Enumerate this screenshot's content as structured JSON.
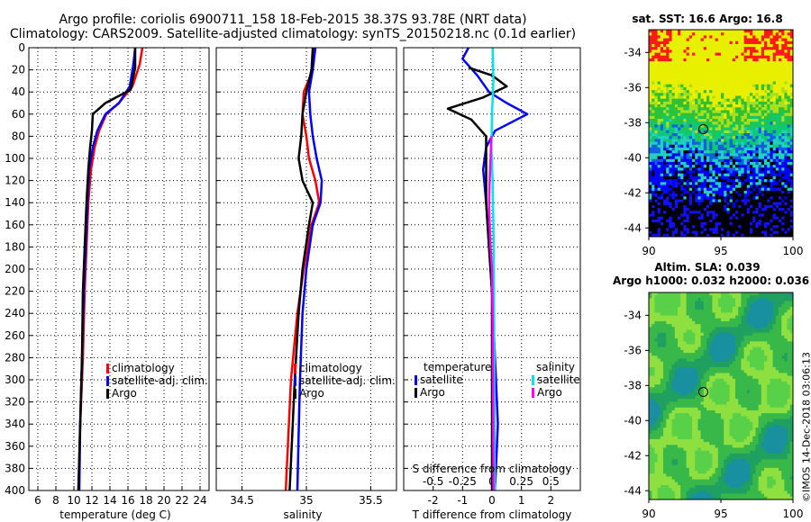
{
  "header": {
    "title_line1": "Argo profile: coriolis 6900711_158 18-Feb-2015 38.37S 93.78E (NRT data)",
    "title_line2": "Climatology: CARS2009. Satellite-adjusted climatology: synTS_20150218.nc (0.1d earlier)"
  },
  "credit": "©IMOS 14-Dec-2018 03:06:13",
  "colors": {
    "climatology": "#ff0000",
    "satellite": "#0000ff",
    "argo": "#000000",
    "sal_satellite": "#00e5ee",
    "sal_argo": "#ff00ff"
  },
  "chart_data": [
    {
      "id": "temperature",
      "type": "line",
      "xlabel": "temperature (deg C)",
      "ylabel": "",
      "xlim": [
        5,
        25
      ],
      "ylim": [
        400,
        0
      ],
      "xticks": [
        6,
        8,
        10,
        12,
        14,
        16,
        18,
        20,
        22,
        24
      ],
      "yticks": [
        0,
        20,
        40,
        60,
        80,
        100,
        120,
        140,
        160,
        180,
        200,
        220,
        240,
        260,
        280,
        300,
        320,
        340,
        360,
        380,
        400
      ],
      "grid": true,
      "legend": [
        "climatology",
        "satellite-adj. clim.",
        "Argo"
      ],
      "legend_position": "bottom-right",
      "series": [
        {
          "name": "climatology",
          "color": "#ff0000",
          "x": [
            17.6,
            17.3,
            16.5,
            15.0,
            13.6,
            12.8,
            12.3,
            11.9,
            11.6,
            11.4,
            11.2,
            11.0,
            10.7,
            10.5
          ],
          "y": [
            0,
            15,
            35,
            50,
            60,
            75,
            90,
            110,
            140,
            180,
            220,
            280,
            340,
            400
          ]
        },
        {
          "name": "satellite-adj. clim.",
          "color": "#0000ff",
          "x": [
            16.8,
            16.6,
            16.2,
            15.0,
            13.5,
            12.6,
            12.1,
            11.7,
            11.5,
            11.3,
            11.1,
            10.9,
            10.7,
            10.6
          ],
          "y": [
            0,
            15,
            35,
            50,
            60,
            75,
            90,
            110,
            140,
            180,
            220,
            280,
            340,
            400
          ]
        },
        {
          "name": "Argo",
          "color": "#000000",
          "x": [
            16.8,
            16.8,
            16.3,
            13.5,
            12.1,
            12.0,
            11.8,
            11.6,
            11.4,
            11.2,
            11.0,
            10.9,
            10.7,
            10.5
          ],
          "y": [
            0,
            18,
            38,
            50,
            60,
            75,
            90,
            110,
            140,
            180,
            220,
            280,
            340,
            400
          ]
        }
      ]
    },
    {
      "id": "salinity",
      "type": "line",
      "xlabel": "salinity",
      "ylabel": "",
      "xlim": [
        34.3,
        35.7
      ],
      "ylim": [
        400,
        0
      ],
      "xticks": [
        34.5,
        35,
        35.5
      ],
      "grid": true,
      "legend": [
        "climatology",
        "satellite-adj. clim.",
        "Argo"
      ],
      "legend_position": "bottom-right",
      "series": [
        {
          "name": "climatology",
          "color": "#ff0000",
          "x": [
            35.06,
            35.05,
            34.98,
            34.97,
            35.0,
            35.02,
            35.07,
            35.1,
            35.04,
            34.98,
            34.93,
            34.88,
            34.86,
            34.84
          ],
          "y": [
            0,
            20,
            40,
            60,
            80,
            100,
            120,
            140,
            160,
            200,
            240,
            300,
            350,
            400
          ]
        },
        {
          "name": "satellite-adj. clim.",
          "color": "#0000ff",
          "x": [
            35.07,
            35.05,
            35.02,
            35.03,
            35.05,
            35.08,
            35.12,
            35.11,
            35.05,
            35.0,
            34.97,
            34.95,
            34.94,
            34.93
          ],
          "y": [
            0,
            20,
            40,
            60,
            80,
            100,
            120,
            140,
            160,
            200,
            240,
            300,
            350,
            400
          ]
        },
        {
          "name": "Argo",
          "color": "#000000",
          "x": [
            35.05,
            35.04,
            35.0,
            34.97,
            34.96,
            34.94,
            34.97,
            35.05,
            35.02,
            34.97,
            34.94,
            34.91,
            34.89,
            34.87
          ],
          "y": [
            0,
            20,
            40,
            60,
            80,
            100,
            120,
            140,
            160,
            200,
            240,
            300,
            350,
            400
          ]
        }
      ]
    },
    {
      "id": "difference",
      "type": "line",
      "xlabel": "T difference from climatology",
      "x2label": "S difference from climatology",
      "xlim": [
        -3,
        3
      ],
      "ylim": [
        400,
        0
      ],
      "xticks": [
        -2,
        -1,
        0,
        1,
        2
      ],
      "xtick_labels": [
        "-2",
        "-1",
        "0",
        "1",
        "2"
      ],
      "x2ticks": [
        -2,
        -1,
        0,
        1,
        2
      ],
      "x2tick_labels": [
        "-0.5",
        "-0.25",
        "0",
        "0.25",
        "0.5"
      ],
      "grid": true,
      "legend_temperature_title": "temperature",
      "legend_salinity_title": "salinity",
      "legend_temperature": [
        "satellite",
        "Argo"
      ],
      "legend_salinity": [
        "satellite",
        "Argo"
      ],
      "legend_position": "bottom",
      "series": [
        {
          "name": "T satellite",
          "color": "#0000ff",
          "x": [
            -0.8,
            -1.0,
            -0.5,
            -0.1,
            0.5,
            1.2,
            0.1,
            -0.2,
            -0.3,
            -0.2,
            -0.1,
            0.0,
            0.1,
            0.2,
            0.1
          ],
          "y": [
            0,
            10,
            25,
            40,
            50,
            60,
            75,
            90,
            110,
            140,
            180,
            220,
            280,
            340,
            400
          ]
        },
        {
          "name": "T Argo",
          "color": "#000000",
          "x": [
            -0.8,
            0.0,
            0.5,
            -0.3,
            -1.5,
            -0.7,
            -0.2,
            -0.2,
            -0.2,
            -0.1,
            0.0,
            0.0,
            0.0,
            0.0
          ],
          "y": [
            18,
            25,
            35,
            45,
            55,
            65,
            80,
            100,
            140,
            180,
            220,
            280,
            340,
            400
          ]
        },
        {
          "name": "S satellite",
          "color": "#00e5ee",
          "x": [
            0.02,
            0.05,
            0.0,
            -0.02,
            0.02,
            0.03,
            0.05,
            0.06,
            0.07,
            0.08,
            0.08,
            0.09,
            0.09,
            0.1
          ],
          "y": [
            0,
            30,
            60,
            90,
            120,
            140,
            160,
            200,
            240,
            280,
            320,
            340,
            370,
            400
          ]
        },
        {
          "name": "S Argo",
          "color": "#ff00ff",
          "x": [
            -0.02,
            -0.05,
            -0.08,
            -0.1,
            -0.08,
            -0.05,
            0.0,
            0.02,
            0.03,
            0.04,
            0.04,
            0.05,
            0.05
          ],
          "y": [
            80,
            100,
            120,
            140,
            160,
            180,
            200,
            240,
            280,
            320,
            350,
            380,
            400
          ]
        }
      ]
    },
    {
      "id": "sst_map",
      "type": "heatmap",
      "title": "sat. SST: 16.6 Argo: 16.8",
      "xlim": [
        90,
        100
      ],
      "ylim": [
        -44.5,
        -32.7
      ],
      "xticks": [
        90,
        95,
        100
      ],
      "yticks": [
        -34,
        -36,
        -38,
        -40,
        -42,
        -44
      ],
      "marker": {
        "lon": 93.78,
        "lat": -38.37
      }
    },
    {
      "id": "sla_map",
      "type": "heatmap",
      "title": "Altim. SLA: 0.039",
      "subtitle": "Argo h1000: 0.032 h2000: 0.036",
      "xlim": [
        90,
        100
      ],
      "ylim": [
        -44.5,
        -32.7
      ],
      "xticks": [
        90,
        95,
        100
      ],
      "yticks": [
        -34,
        -36,
        -38,
        -40,
        -42,
        -44
      ],
      "marker": {
        "lon": 93.78,
        "lat": -38.37
      }
    }
  ]
}
